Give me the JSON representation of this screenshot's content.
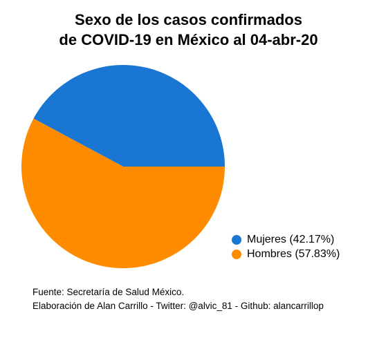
{
  "title_lines": [
    "Sexo de los casos confirmados",
    "de COVID-19 en México al 04-abr-20"
  ],
  "caption_lines": [
    "Fuente: Secretaría de Salud México.",
    "Elaboración de Alan Carrillo - Twitter: @alvic_81 - Github: alancarrillop"
  ],
  "legend": [
    {
      "label": "Mujeres (42.17%)",
      "color": "#1976d2"
    },
    {
      "label": "Hombres (57.83%)",
      "color": "#ff8c00"
    }
  ],
  "chart_data": {
    "type": "pie",
    "title": "Sexo de los casos confirmados de COVID-19 en México al 04-abr-20",
    "slices": [
      {
        "name": "Mujeres",
        "value": 42.17,
        "color": "#1976d2"
      },
      {
        "name": "Hombres",
        "value": 57.83,
        "color": "#ff8c00"
      }
    ],
    "start_angle_deg": 90,
    "direction": "counterclockwise",
    "legend_position": "bottom-right"
  }
}
